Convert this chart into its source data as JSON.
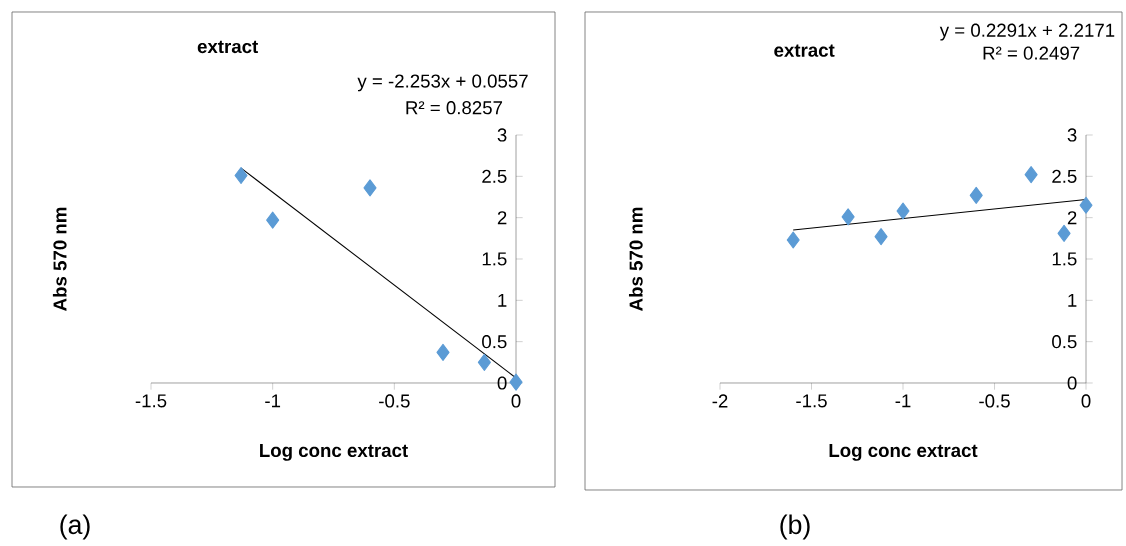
{
  "chart_data": [
    {
      "type": "scatter",
      "title": "extract",
      "xlabel": "Log conc extract",
      "ylabel": "Abs 570 nm",
      "annotations": [
        "y = -2.253x + 0.0557",
        "R² = 0.8257",
        "(a)"
      ],
      "xlim": [
        -1.5,
        0
      ],
      "ylim": [
        0,
        3
      ],
      "xticks": [
        -1.5,
        -1,
        -0.5,
        0
      ],
      "yticks": [
        0,
        0.5,
        1,
        1.5,
        2,
        2.5,
        3
      ],
      "series": [
        {
          "marker": "diamond",
          "color": "#5b9bd5",
          "x": [
            -1.13,
            -1,
            -0.6,
            -0.3,
            -0.13,
            0
          ],
          "values": [
            2.51,
            1.97,
            2.36,
            0.37,
            0.25,
            0.01
          ]
        },
        {
          "type": "line",
          "marker": "none",
          "color": "#000000",
          "x": [
            -1.13,
            0
          ],
          "values": [
            2.6,
            0.06
          ]
        }
      ]
    },
    {
      "type": "scatter",
      "title": "extract",
      "xlabel": "Log conc extract",
      "ylabel": "Abs 570 nm",
      "annotations": [
        "y = 0.2291x + 2.2171",
        "R² = 0.2497",
        "(b)"
      ],
      "xlim": [
        -2,
        0
      ],
      "ylim": [
        0,
        3
      ],
      "xticks": [
        -2,
        -1.5,
        -1,
        -0.5,
        0
      ],
      "yticks": [
        0,
        0.5,
        1,
        1.5,
        2,
        2.5,
        3
      ],
      "series": [
        {
          "marker": "diamond",
          "color": "#5b9bd5",
          "x": [
            -1.6,
            -1.3,
            -1.12,
            -1,
            -0.6,
            -0.3,
            -0.12,
            0
          ],
          "values": [
            1.73,
            2.01,
            1.77,
            2.08,
            2.27,
            2.52,
            1.81,
            2.15
          ]
        },
        {
          "type": "line",
          "marker": "none",
          "color": "#000000",
          "x": [
            -1.6,
            0
          ],
          "values": [
            1.85,
            2.22
          ]
        }
      ]
    }
  ]
}
